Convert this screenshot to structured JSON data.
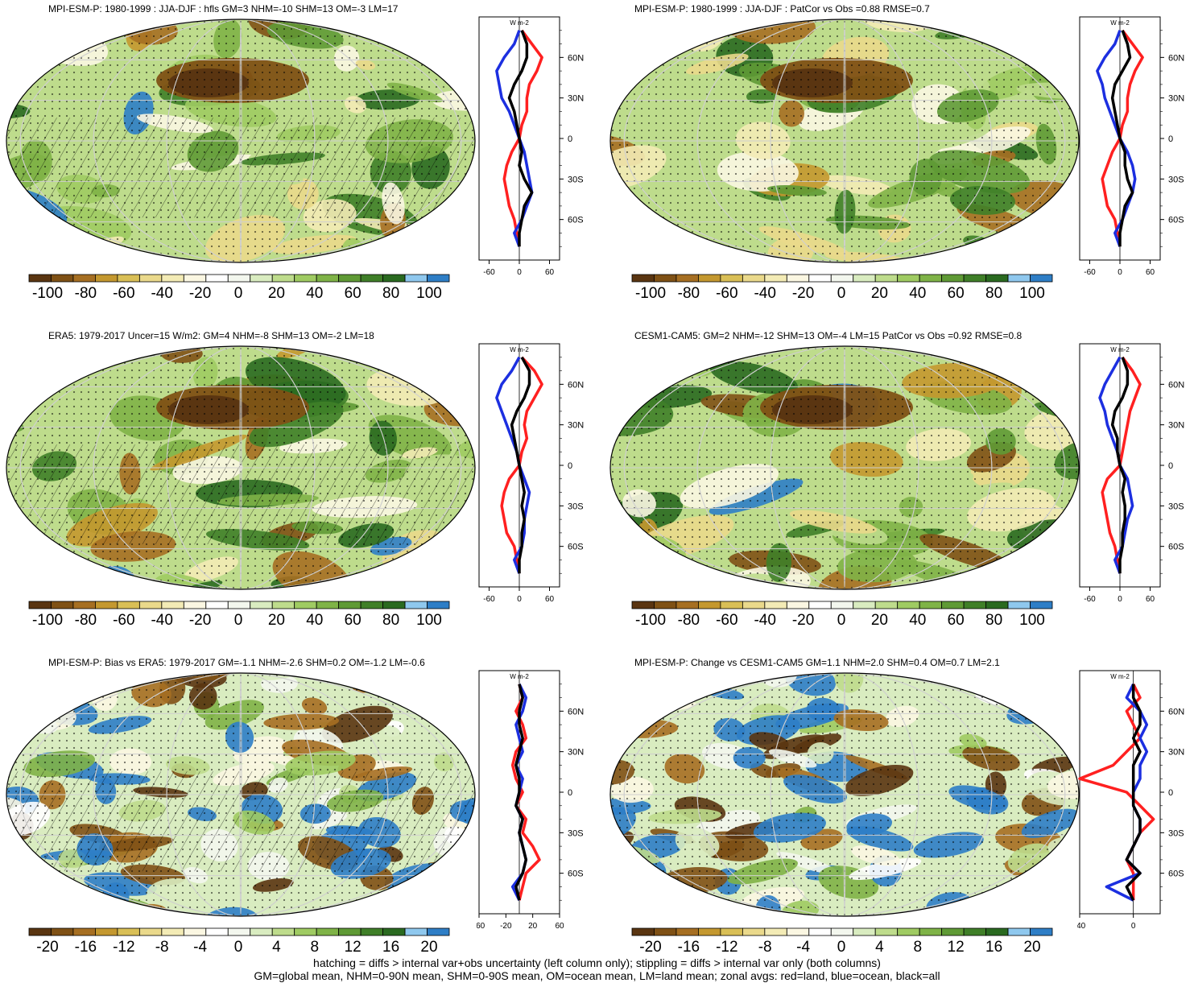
{
  "colors": {
    "palette": [
      "#5a3511",
      "#7f5115",
      "#a66f22",
      "#c4982f",
      "#d9bf56",
      "#ead98b",
      "#f3ebb5",
      "#fbf7e2",
      "#ffffff",
      "#f3f7ee",
      "#d9ecc0",
      "#bedc8c",
      "#9fcb62",
      "#7fb347",
      "#5f9a35",
      "#3f7f28",
      "#2a6a20",
      "#8fc8ee",
      "#2e7ec6"
    ],
    "red": "#ff2020",
    "blue": "#1c2fe0",
    "black": "#000000"
  },
  "axis_unit": "W m-2",
  "lat_ticks": [
    "60N",
    "30N",
    "0",
    "30S",
    "60S"
  ],
  "panels": [
    {
      "id": "mpi-esm-p-climatology",
      "title": "MPI-ESM-P: 1980-1999 : JJA-DJF : hfls GM=3 NHM=-10 SHM=13 OM=-3 LM=17",
      "colorbar_labels": [
        "-100",
        "-80",
        "-60",
        "-40",
        "-20",
        "0",
        "20",
        "40",
        "60",
        "80",
        "100"
      ],
      "zonal_xticks": [
        "-60",
        "0",
        "60"
      ],
      "zonal_xlim": [
        -80,
        80
      ],
      "hatched": true
    },
    {
      "id": "mpi-esm-p-patcor",
      "title": "MPI-ESM-P: 1980-1999 : JJA-DJF : PatCor vs Obs =0.88 RMSE=0.7",
      "colorbar_labels": [
        "-100",
        "-80",
        "-60",
        "-40",
        "-20",
        "0",
        "20",
        "40",
        "60",
        "80",
        "100"
      ],
      "zonal_xticks": [
        "-60",
        "0",
        "60"
      ],
      "zonal_xlim": [
        -80,
        80
      ],
      "hatched": false
    },
    {
      "id": "era5",
      "title": "ERA5: 1979-2017 Uncer=15 W/m2: GM=4 NHM=-8 SHM=13 OM=-2 LM=18",
      "colorbar_labels": [
        "-100",
        "-80",
        "-60",
        "-40",
        "-20",
        "0",
        "20",
        "40",
        "60",
        "80",
        "100"
      ],
      "zonal_xticks": [
        "-60",
        "0",
        "60"
      ],
      "zonal_xlim": [
        -80,
        80
      ],
      "hatched": true
    },
    {
      "id": "cesm1-cam5",
      "title": "CESM1-CAM5: GM=2 NHM=-12 SHM=13 OM=-4 LM=15 PatCor vs Obs =0.92 RMSE=0.8",
      "colorbar_labels": [
        "-100",
        "-80",
        "-60",
        "-40",
        "-20",
        "0",
        "20",
        "40",
        "60",
        "80",
        "100"
      ],
      "zonal_xticks": [
        "-60",
        "0",
        "60"
      ],
      "zonal_xlim": [
        -80,
        80
      ],
      "hatched": false
    },
    {
      "id": "mpi-bias-vs-era5",
      "title": "MPI-ESM-P: Bias vs ERA5: 1979-2017 GM=-1.1 NHM=-2.6 SHM=0.2 OM=-1.2 LM=-0.6",
      "colorbar_labels": [
        "-20",
        "-16",
        "-12",
        "-8",
        "-4",
        "0",
        "4",
        "8",
        "12",
        "16",
        "20"
      ],
      "zonal_xticks": [
        "-60",
        "-20",
        "20",
        "60"
      ],
      "zonal_xlim": [
        -60,
        60
      ],
      "hatched": true
    },
    {
      "id": "mpi-change-vs-cesm",
      "title": "MPI-ESM-P: Change vs CESM1-CAM5 GM=1.1 NHM=2.0 SHM=0.4 OM=0.7 LM=2.1",
      "colorbar_labels": [
        "-20",
        "-16",
        "-12",
        "-8",
        "-4",
        "0",
        "4",
        "8",
        "12",
        "16",
        "20"
      ],
      "zonal_xticks": [
        "-40",
        "0"
      ],
      "zonal_xlim": [
        -40,
        20
      ],
      "hatched": false
    }
  ],
  "chart_data": [
    {
      "type": "line",
      "panel": "mpi-esm-p-climatology",
      "ylabel": "latitude",
      "y": [
        80,
        70,
        60,
        50,
        40,
        30,
        20,
        10,
        0,
        -10,
        -20,
        -30,
        -40,
        -50,
        -60,
        -70,
        -80
      ],
      "series": [
        {
          "color": "red",
          "values": [
            5,
            25,
            45,
            35,
            20,
            15,
            15,
            5,
            0,
            -15,
            -25,
            -30,
            -25,
            -20,
            -10,
            -5,
            0
          ]
        },
        {
          "color": "blue",
          "values": [
            0,
            -10,
            -30,
            -45,
            -40,
            -35,
            -20,
            -10,
            0,
            10,
            15,
            20,
            25,
            15,
            5,
            -10,
            0
          ]
        },
        {
          "color": "black",
          "values": [
            5,
            15,
            15,
            5,
            -10,
            -20,
            -10,
            -5,
            0,
            5,
            0,
            10,
            25,
            10,
            5,
            0,
            0
          ]
        }
      ]
    },
    {
      "type": "line",
      "panel": "mpi-esm-p-patcor",
      "ylabel": "latitude",
      "y": [
        80,
        70,
        60,
        50,
        40,
        30,
        20,
        10,
        0,
        -10,
        -20,
        -30,
        -40,
        -50,
        -60,
        -70,
        -80
      ],
      "series": [
        {
          "color": "red",
          "values": [
            5,
            25,
            45,
            30,
            20,
            15,
            15,
            5,
            0,
            -15,
            -25,
            -35,
            -30,
            -25,
            -10,
            -5,
            0
          ]
        },
        {
          "color": "blue",
          "values": [
            0,
            -10,
            -30,
            -45,
            -35,
            -30,
            -20,
            -10,
            0,
            15,
            25,
            30,
            25,
            15,
            5,
            -10,
            0
          ]
        },
        {
          "color": "black",
          "values": [
            5,
            15,
            20,
            5,
            -10,
            -15,
            -10,
            -5,
            0,
            10,
            10,
            15,
            25,
            10,
            5,
            0,
            0
          ]
        }
      ]
    },
    {
      "type": "line",
      "panel": "era5",
      "ylabel": "latitude",
      "y": [
        80,
        70,
        60,
        50,
        40,
        30,
        20,
        10,
        0,
        -10,
        -20,
        -30,
        -40,
        -50,
        -60,
        -70,
        -80
      ],
      "series": [
        {
          "color": "red",
          "values": [
            5,
            30,
            45,
            30,
            15,
            10,
            15,
            5,
            0,
            -20,
            -30,
            -35,
            -30,
            -25,
            -10,
            -5,
            0
          ]
        },
        {
          "color": "blue",
          "values": [
            0,
            -15,
            -35,
            -45,
            -35,
            -25,
            -15,
            -5,
            0,
            10,
            20,
            15,
            10,
            10,
            5,
            -10,
            0
          ]
        },
        {
          "color": "black",
          "values": [
            5,
            20,
            20,
            10,
            -5,
            -15,
            -10,
            -5,
            0,
            5,
            10,
            5,
            10,
            5,
            5,
            0,
            0
          ]
        }
      ]
    },
    {
      "type": "line",
      "panel": "cesm1-cam5",
      "ylabel": "latitude",
      "y": [
        80,
        70,
        60,
        50,
        40,
        30,
        20,
        10,
        0,
        -10,
        -20,
        -30,
        -40,
        -50,
        -60,
        -70,
        -80
      ],
      "series": [
        {
          "color": "red",
          "values": [
            5,
            25,
            40,
            30,
            20,
            15,
            10,
            5,
            0,
            -25,
            -35,
            -30,
            -25,
            -20,
            -10,
            -5,
            0
          ]
        },
        {
          "color": "blue",
          "values": [
            0,
            -15,
            -30,
            -40,
            -30,
            -25,
            -15,
            -5,
            0,
            15,
            20,
            25,
            15,
            10,
            5,
            -10,
            0
          ]
        },
        {
          "color": "black",
          "values": [
            5,
            15,
            15,
            5,
            -10,
            -15,
            -5,
            -5,
            0,
            10,
            5,
            10,
            10,
            5,
            5,
            0,
            0
          ]
        }
      ]
    },
    {
      "type": "line",
      "panel": "mpi-bias-vs-era5",
      "ylabel": "latitude",
      "y": [
        80,
        70,
        60,
        50,
        40,
        30,
        20,
        10,
        0,
        -10,
        -20,
        -30,
        -40,
        -50,
        -60,
        -70,
        -80
      ],
      "series": [
        {
          "color": "red",
          "values": [
            0,
            5,
            -5,
            5,
            10,
            -5,
            -10,
            -5,
            5,
            -5,
            10,
            5,
            20,
            30,
            10,
            5,
            0
          ]
        },
        {
          "color": "blue",
          "values": [
            0,
            10,
            5,
            -5,
            0,
            5,
            -5,
            5,
            0,
            -5,
            5,
            0,
            5,
            10,
            5,
            -10,
            0
          ]
        },
        {
          "color": "black",
          "values": [
            0,
            5,
            0,
            0,
            5,
            0,
            -5,
            0,
            0,
            -5,
            5,
            0,
            5,
            10,
            5,
            -5,
            0
          ]
        }
      ]
    },
    {
      "type": "line",
      "panel": "mpi-change-vs-cesm",
      "ylabel": "latitude",
      "y": [
        80,
        70,
        60,
        50,
        40,
        30,
        20,
        10,
        0,
        -10,
        -20,
        -30,
        -40,
        -50,
        -60,
        -70,
        -80
      ],
      "series": [
        {
          "color": "red",
          "values": [
            0,
            5,
            -5,
            0,
            5,
            -5,
            -15,
            -40,
            -5,
            5,
            15,
            5,
            0,
            -5,
            0,
            0,
            0
          ]
        },
        {
          "color": "blue",
          "values": [
            0,
            -5,
            5,
            10,
            5,
            10,
            5,
            5,
            0,
            0,
            5,
            5,
            0,
            -5,
            5,
            -20,
            0
          ]
        },
        {
          "color": "black",
          "values": [
            0,
            0,
            5,
            5,
            0,
            5,
            0,
            0,
            0,
            0,
            5,
            5,
            0,
            -5,
            5,
            -5,
            0
          ]
        }
      ]
    }
  ],
  "footer": {
    "line1": "hatching = diffs > internal var+obs uncertainty (left column only); stippling = diffs > internal var only (both columns)",
    "line2": "GM=global mean, NHM=0-90N mean, SHM=0-90S mean, OM=ocean mean, LM=land mean; zonal avgs: red=land, blue=ocean, black=all"
  }
}
